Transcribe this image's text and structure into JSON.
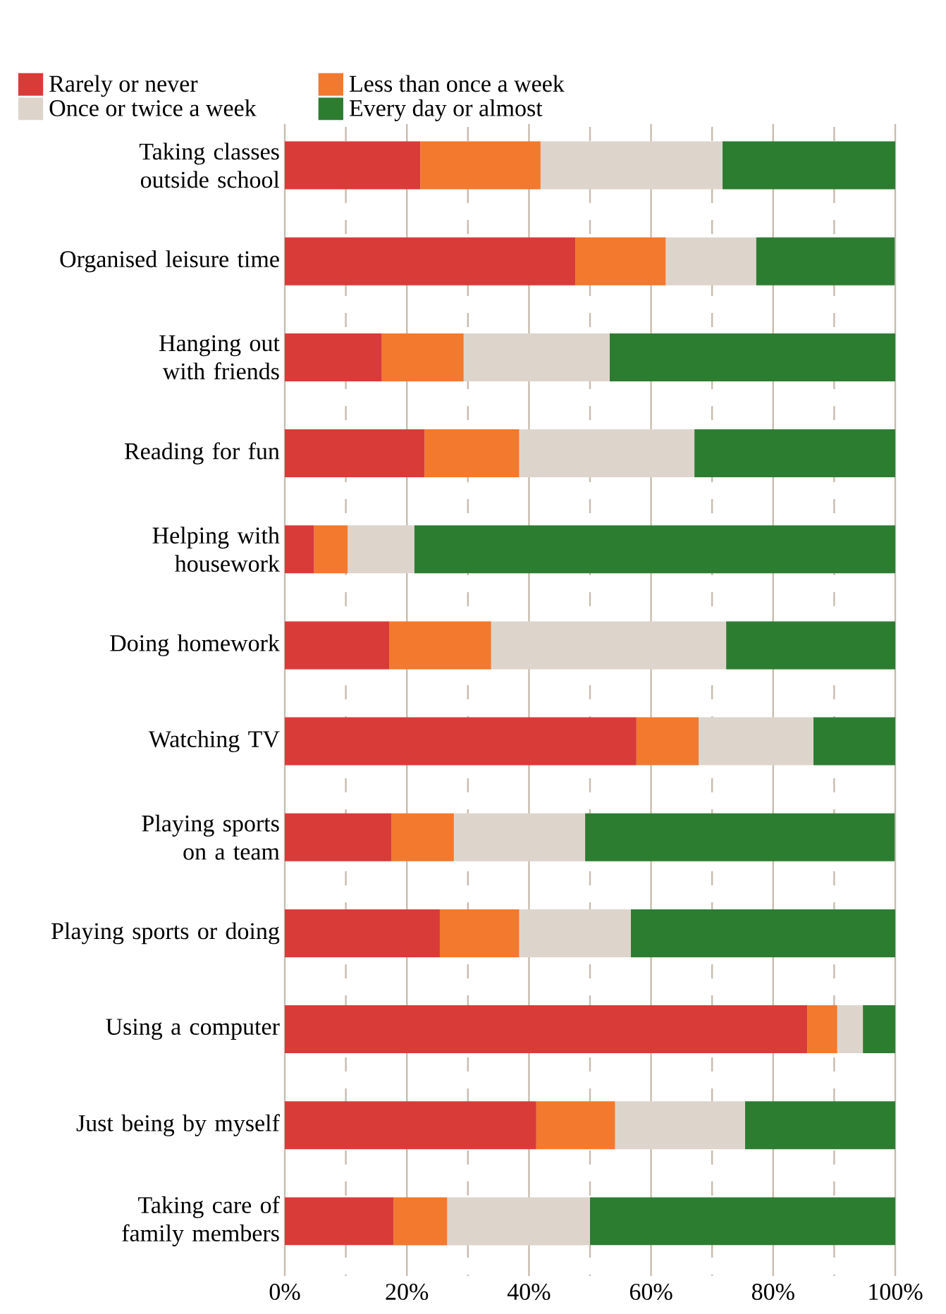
{
  "chart_data": {
    "type": "bar",
    "orientation": "horizontal",
    "stacked": true,
    "categories": [
      "Taking classes outside school",
      "Organised leisure time",
      "Hanging out with friends",
      "Reading for fun",
      "Helping with housework",
      "Doing homework",
      "Watching TV",
      "Playing sports on a team",
      "Playing sports or doing",
      "Using a computer",
      "Just being by myself",
      "Taking care of family members"
    ],
    "series": [
      {
        "name": "Rarely or never",
        "color": "#d93b38",
        "values": [
          22.2,
          47.6,
          15.9,
          22.9,
          4.8,
          17.1,
          57.6,
          17.5,
          25.4,
          85.6,
          41.2,
          17.8
        ]
      },
      {
        "name": "Less than once a week",
        "color": "#f2792e",
        "values": [
          19.7,
          14.8,
          13.4,
          15.5,
          5.5,
          16.7,
          10.2,
          10.2,
          13.0,
          4.9,
          12.9,
          8.8
        ]
      },
      {
        "name": "Once or twice a week",
        "color": "#ddd5cc",
        "values": [
          29.8,
          14.8,
          23.9,
          28.7,
          10.9,
          38.5,
          18.8,
          21.5,
          18.3,
          4.2,
          21.3,
          23.4
        ]
      },
      {
        "name": "Every day or almost",
        "color": "#2d7d31",
        "values": [
          28.3,
          22.7,
          46.8,
          32.9,
          78.8,
          27.8,
          13.4,
          50.7,
          43.3,
          5.3,
          24.6,
          50.0
        ]
      }
    ],
    "xlim": [
      0,
      100
    ],
    "xticks": [
      {
        "value": 0,
        "label": "0%"
      },
      {
        "value": 10,
        "label": null
      },
      {
        "value": 20,
        "label": "20%"
      },
      {
        "value": 30,
        "label": null
      },
      {
        "value": 40,
        "label": "40%"
      },
      {
        "value": 50,
        "label": null
      },
      {
        "value": 60,
        "label": "60%"
      },
      {
        "value": 70,
        "label": null
      },
      {
        "value": 80,
        "label": "80%"
      },
      {
        "value": 90,
        "label": null
      },
      {
        "value": 100,
        "label": "100%"
      }
    ],
    "grid": "x",
    "legend": "top"
  }
}
